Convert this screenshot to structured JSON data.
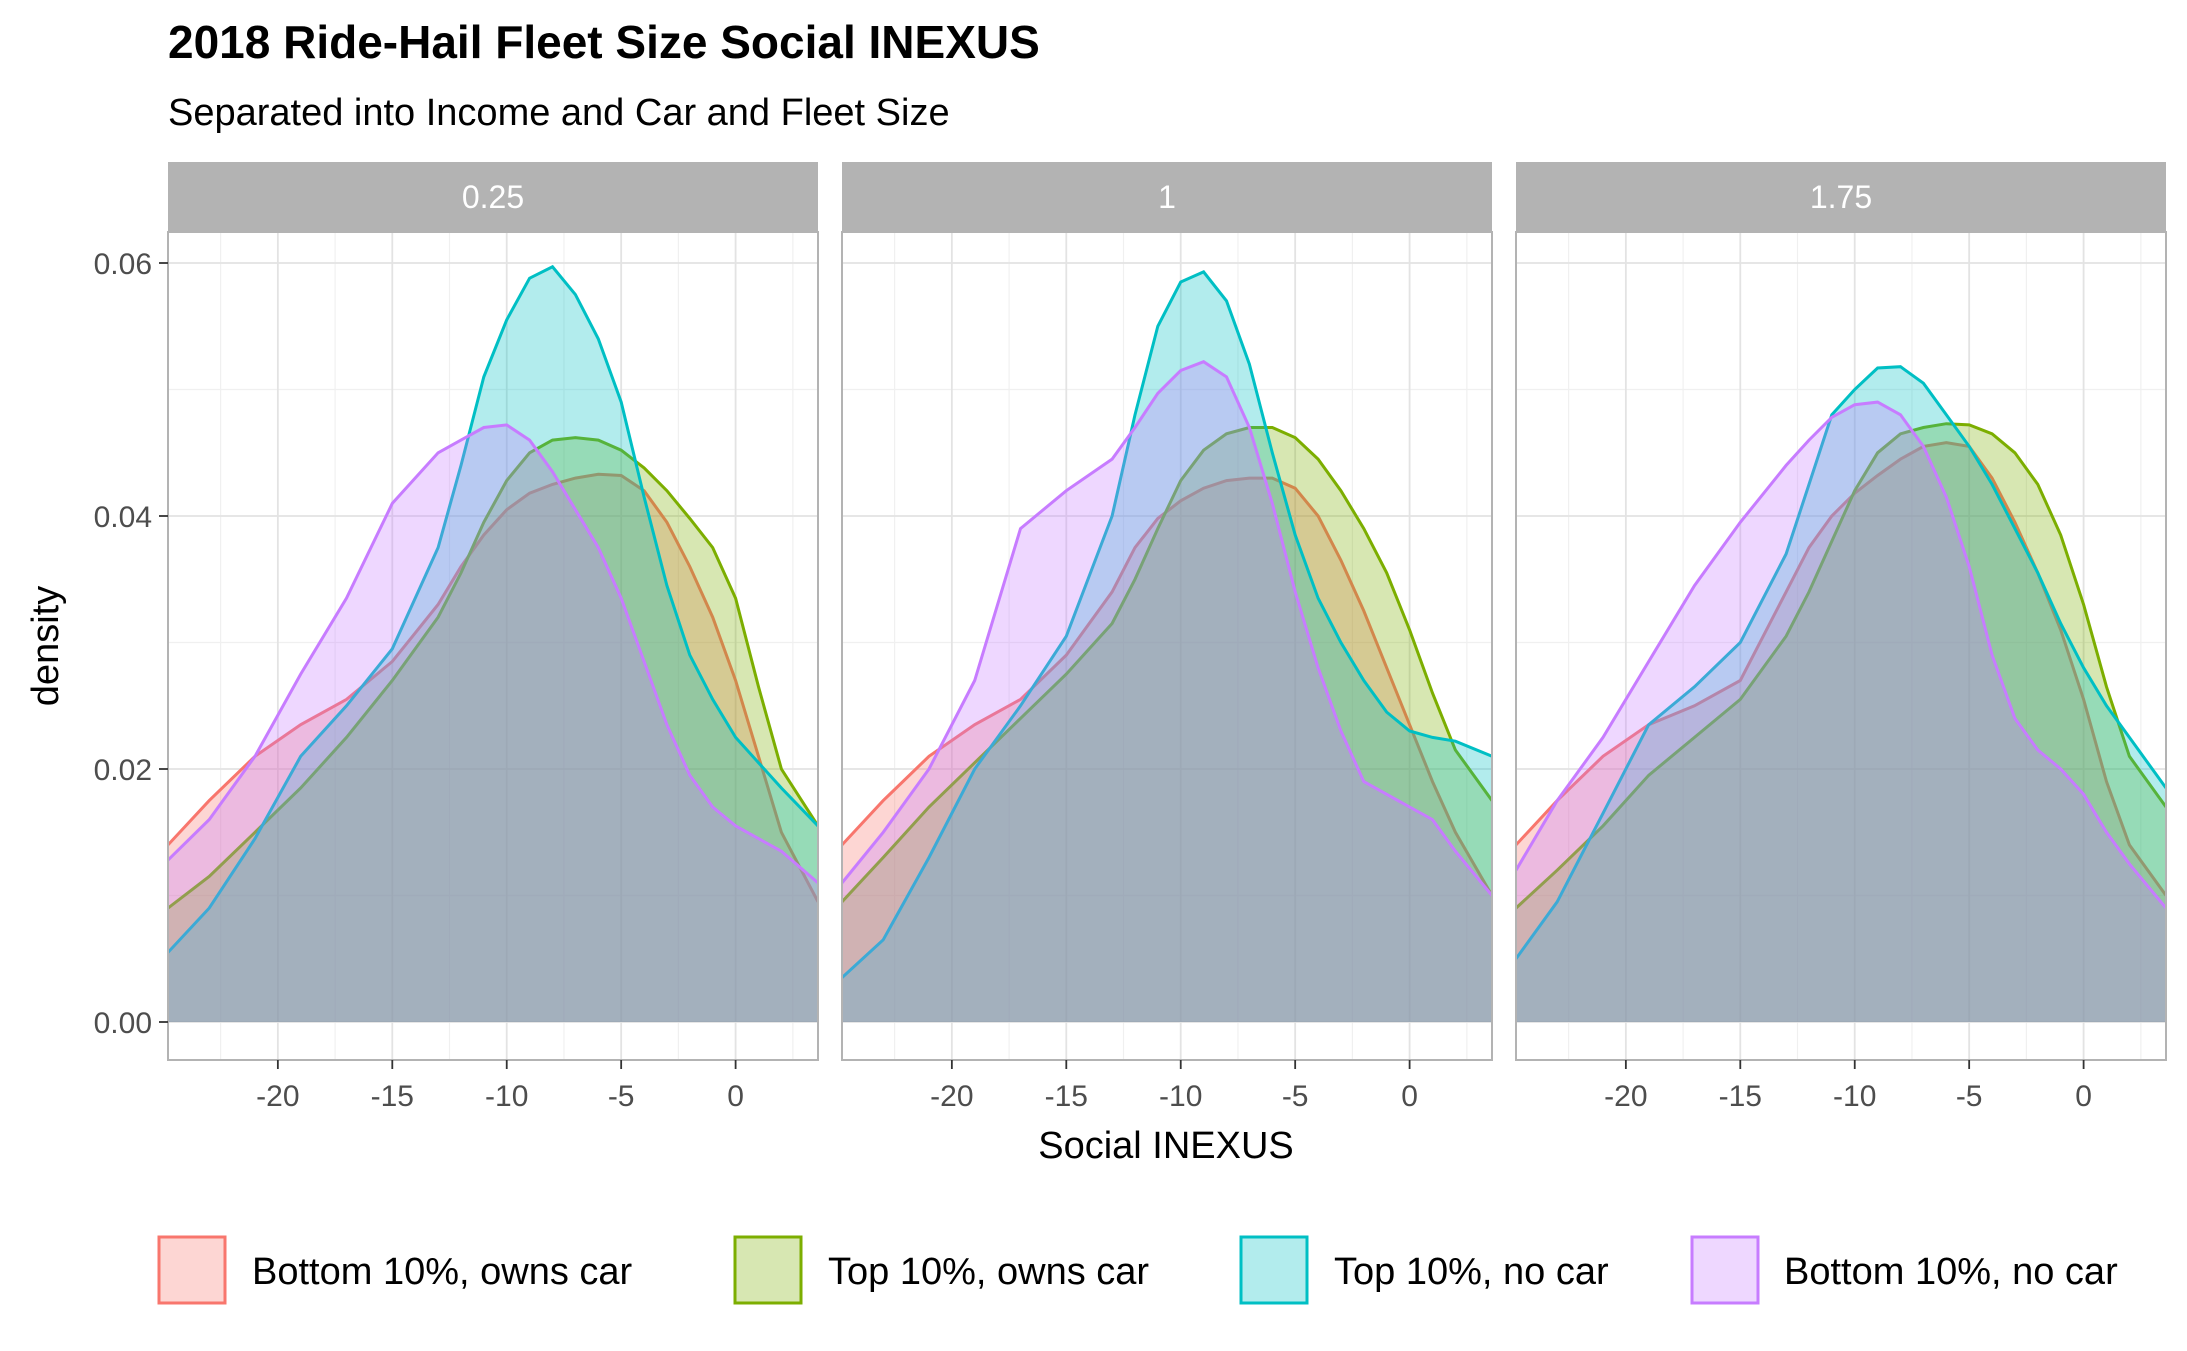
{
  "chart_data": {
    "type": "area",
    "title": "2018 Ride-Hail Fleet Size Social INEXUS",
    "subtitle": "Separated into Income and Car and Fleet Size",
    "xlabel": "Social INEXUS",
    "ylabel": "density",
    "xlim": [
      -24.8,
      3.6
    ],
    "ylim": [
      0,
      0.063
    ],
    "x_ticks": [
      -20,
      -15,
      -10,
      -5,
      0
    ],
    "x_tick_labels": [
      "-20",
      "-15",
      "-10",
      "-5",
      "0"
    ],
    "y_ticks": [
      0,
      0.02,
      0.04,
      0.06
    ],
    "y_tick_labels": [
      "0.00",
      "0.02",
      "0.04",
      "0.06"
    ],
    "grid": true,
    "legend_position": "bottom",
    "series": [
      {
        "name": "Bottom 10%, owns car",
        "color": "#F8766D"
      },
      {
        "name": "Top 10%, owns car",
        "color": "#7CAE00"
      },
      {
        "name": "Top 10%, no car",
        "color": "#00BFC4"
      },
      {
        "name": "Bottom 10%, no car",
        "color": "#C77CFF"
      }
    ],
    "x": [
      -24.8,
      -23,
      -21,
      -19,
      -17,
      -15,
      -13,
      -12,
      -11,
      -10,
      -9,
      -8,
      -7,
      -6,
      -5,
      -4,
      -3,
      -2,
      -1,
      0,
      1,
      2,
      3.6
    ],
    "panels": [
      {
        "label": "0.25",
        "values": [
          [
            0.014,
            0.0175,
            0.021,
            0.0235,
            0.0255,
            0.0285,
            0.033,
            0.036,
            0.0385,
            0.0405,
            0.0418,
            0.0425,
            0.043,
            0.0433,
            0.0432,
            0.042,
            0.0395,
            0.036,
            0.032,
            0.027,
            0.021,
            0.015,
            0.0095
          ],
          [
            0.009,
            0.0115,
            0.015,
            0.0185,
            0.0225,
            0.027,
            0.032,
            0.0355,
            0.0395,
            0.0428,
            0.045,
            0.046,
            0.0462,
            0.046,
            0.0452,
            0.0438,
            0.042,
            0.0398,
            0.0375,
            0.0335,
            0.0265,
            0.02,
            0.0155
          ],
          [
            0.0055,
            0.009,
            0.0145,
            0.021,
            0.025,
            0.0295,
            0.0375,
            0.044,
            0.051,
            0.0555,
            0.0588,
            0.0597,
            0.0575,
            0.054,
            0.049,
            0.0415,
            0.0345,
            0.029,
            0.0255,
            0.0225,
            0.0205,
            0.0185,
            0.0155
          ],
          [
            0.0128,
            0.016,
            0.021,
            0.0275,
            0.0335,
            0.041,
            0.045,
            0.046,
            0.047,
            0.0472,
            0.046,
            0.0435,
            0.0405,
            0.0375,
            0.0335,
            0.0285,
            0.0235,
            0.0195,
            0.017,
            0.0155,
            0.0145,
            0.0135,
            0.011
          ]
        ]
      },
      {
        "label": "1",
        "values": [
          [
            0.014,
            0.0175,
            0.021,
            0.0235,
            0.0255,
            0.029,
            0.034,
            0.0375,
            0.0398,
            0.0412,
            0.0422,
            0.0428,
            0.043,
            0.043,
            0.0422,
            0.04,
            0.0365,
            0.0325,
            0.028,
            0.0235,
            0.019,
            0.015,
            0.01
          ],
          [
            0.0095,
            0.013,
            0.017,
            0.0205,
            0.024,
            0.0275,
            0.0315,
            0.035,
            0.039,
            0.0428,
            0.0452,
            0.0465,
            0.047,
            0.047,
            0.0462,
            0.0445,
            0.042,
            0.039,
            0.0355,
            0.031,
            0.026,
            0.0215,
            0.0175
          ],
          [
            0.0035,
            0.0065,
            0.013,
            0.02,
            0.025,
            0.0305,
            0.04,
            0.048,
            0.055,
            0.0585,
            0.0593,
            0.057,
            0.052,
            0.045,
            0.0385,
            0.0335,
            0.03,
            0.027,
            0.0245,
            0.023,
            0.0225,
            0.0222,
            0.021
          ],
          [
            0.011,
            0.015,
            0.02,
            0.027,
            0.039,
            0.042,
            0.0445,
            0.047,
            0.0497,
            0.0515,
            0.0522,
            0.051,
            0.047,
            0.041,
            0.034,
            0.028,
            0.023,
            0.019,
            0.018,
            0.017,
            0.016,
            0.0135,
            0.01
          ]
        ]
      },
      {
        "label": "1.75",
        "values": [
          [
            0.014,
            0.0175,
            0.021,
            0.0235,
            0.025,
            0.027,
            0.034,
            0.0375,
            0.04,
            0.0418,
            0.0432,
            0.0445,
            0.0455,
            0.0458,
            0.0455,
            0.043,
            0.0395,
            0.0355,
            0.031,
            0.0255,
            0.019,
            0.014,
            0.01
          ],
          [
            0.009,
            0.012,
            0.0155,
            0.0195,
            0.0225,
            0.0255,
            0.0305,
            0.034,
            0.038,
            0.042,
            0.045,
            0.0465,
            0.047,
            0.0473,
            0.0472,
            0.0465,
            0.045,
            0.0425,
            0.0385,
            0.033,
            0.0265,
            0.021,
            0.017
          ],
          [
            0.005,
            0.0095,
            0.0165,
            0.0235,
            0.0265,
            0.03,
            0.037,
            0.0425,
            0.048,
            0.05,
            0.0517,
            0.0518,
            0.0505,
            0.048,
            0.0455,
            0.0425,
            0.039,
            0.0355,
            0.0315,
            0.028,
            0.025,
            0.0225,
            0.0185
          ],
          [
            0.012,
            0.0175,
            0.0225,
            0.0285,
            0.0345,
            0.0395,
            0.044,
            0.046,
            0.0478,
            0.0488,
            0.049,
            0.048,
            0.0455,
            0.0415,
            0.036,
            0.029,
            0.024,
            0.0215,
            0.02,
            0.018,
            0.015,
            0.0125,
            0.009
          ]
        ]
      }
    ]
  }
}
